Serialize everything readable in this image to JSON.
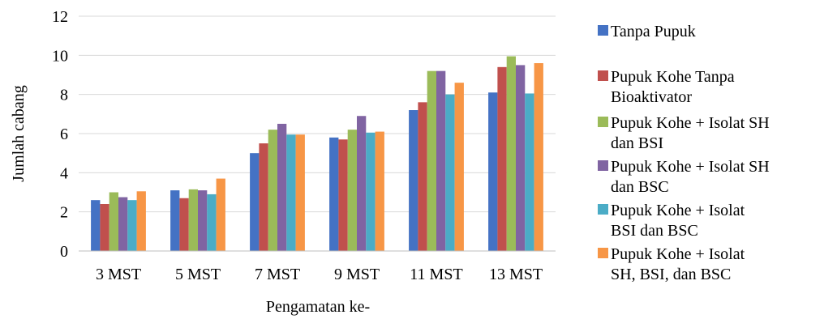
{
  "chart_data": {
    "type": "bar",
    "title": "",
    "xlabel": "Pengamatan ke-",
    "ylabel": "Jumlah cabang",
    "ylim": [
      0,
      12
    ],
    "yticks": [
      0,
      2,
      4,
      6,
      8,
      10,
      12
    ],
    "grid": true,
    "legend_position": "right",
    "categories": [
      "3 MST",
      "5 MST",
      "7 MST",
      "9 MST",
      "11 MST",
      "13 MST"
    ],
    "series": [
      {
        "name": "Tanpa Pupuk",
        "legend_lines": [
          "Tanpa Pupuk"
        ],
        "color": "#4472C4",
        "values": [
          2.6,
          3.1,
          5.0,
          5.8,
          7.2,
          8.1
        ]
      },
      {
        "name": "Pupuk Kohe Tanpa Bioaktivator",
        "legend_lines": [
          "Pupuk Kohe Tanpa",
          "Bioaktivator"
        ],
        "color": "#C0504D",
        "values": [
          2.4,
          2.7,
          5.5,
          5.7,
          7.6,
          9.4
        ]
      },
      {
        "name": "Pupuk Kohe + Isolat SH dan BSI",
        "legend_lines": [
          "Pupuk Kohe + Isolat SH",
          "dan BSI"
        ],
        "color": "#9BBB59",
        "values": [
          3.0,
          3.15,
          6.2,
          6.2,
          9.2,
          9.95
        ]
      },
      {
        "name": "Pupuk Kohe + Isolat SH dan BSC",
        "legend_lines": [
          "Pupuk Kohe + Isolat SH",
          "dan BSC"
        ],
        "color": "#8064A2",
        "values": [
          2.75,
          3.1,
          6.5,
          6.9,
          9.2,
          9.5
        ]
      },
      {
        "name": "Pupuk Kohe + Isolat BSI dan BSC",
        "legend_lines": [
          "Pupuk Kohe + Isolat",
          "BSI dan BSC"
        ],
        "color": "#4BACC6",
        "values": [
          2.6,
          2.9,
          5.95,
          6.05,
          8.0,
          8.05
        ]
      },
      {
        "name": "Pupuk Kohe + Isolat SH, BSI, dan BSC",
        "legend_lines": [
          "Pupuk Kohe + Isolat",
          "SH, BSI, dan BSC"
        ],
        "color": "#F79646",
        "values": [
          3.05,
          3.7,
          5.95,
          6.1,
          8.6,
          9.6
        ]
      }
    ]
  }
}
